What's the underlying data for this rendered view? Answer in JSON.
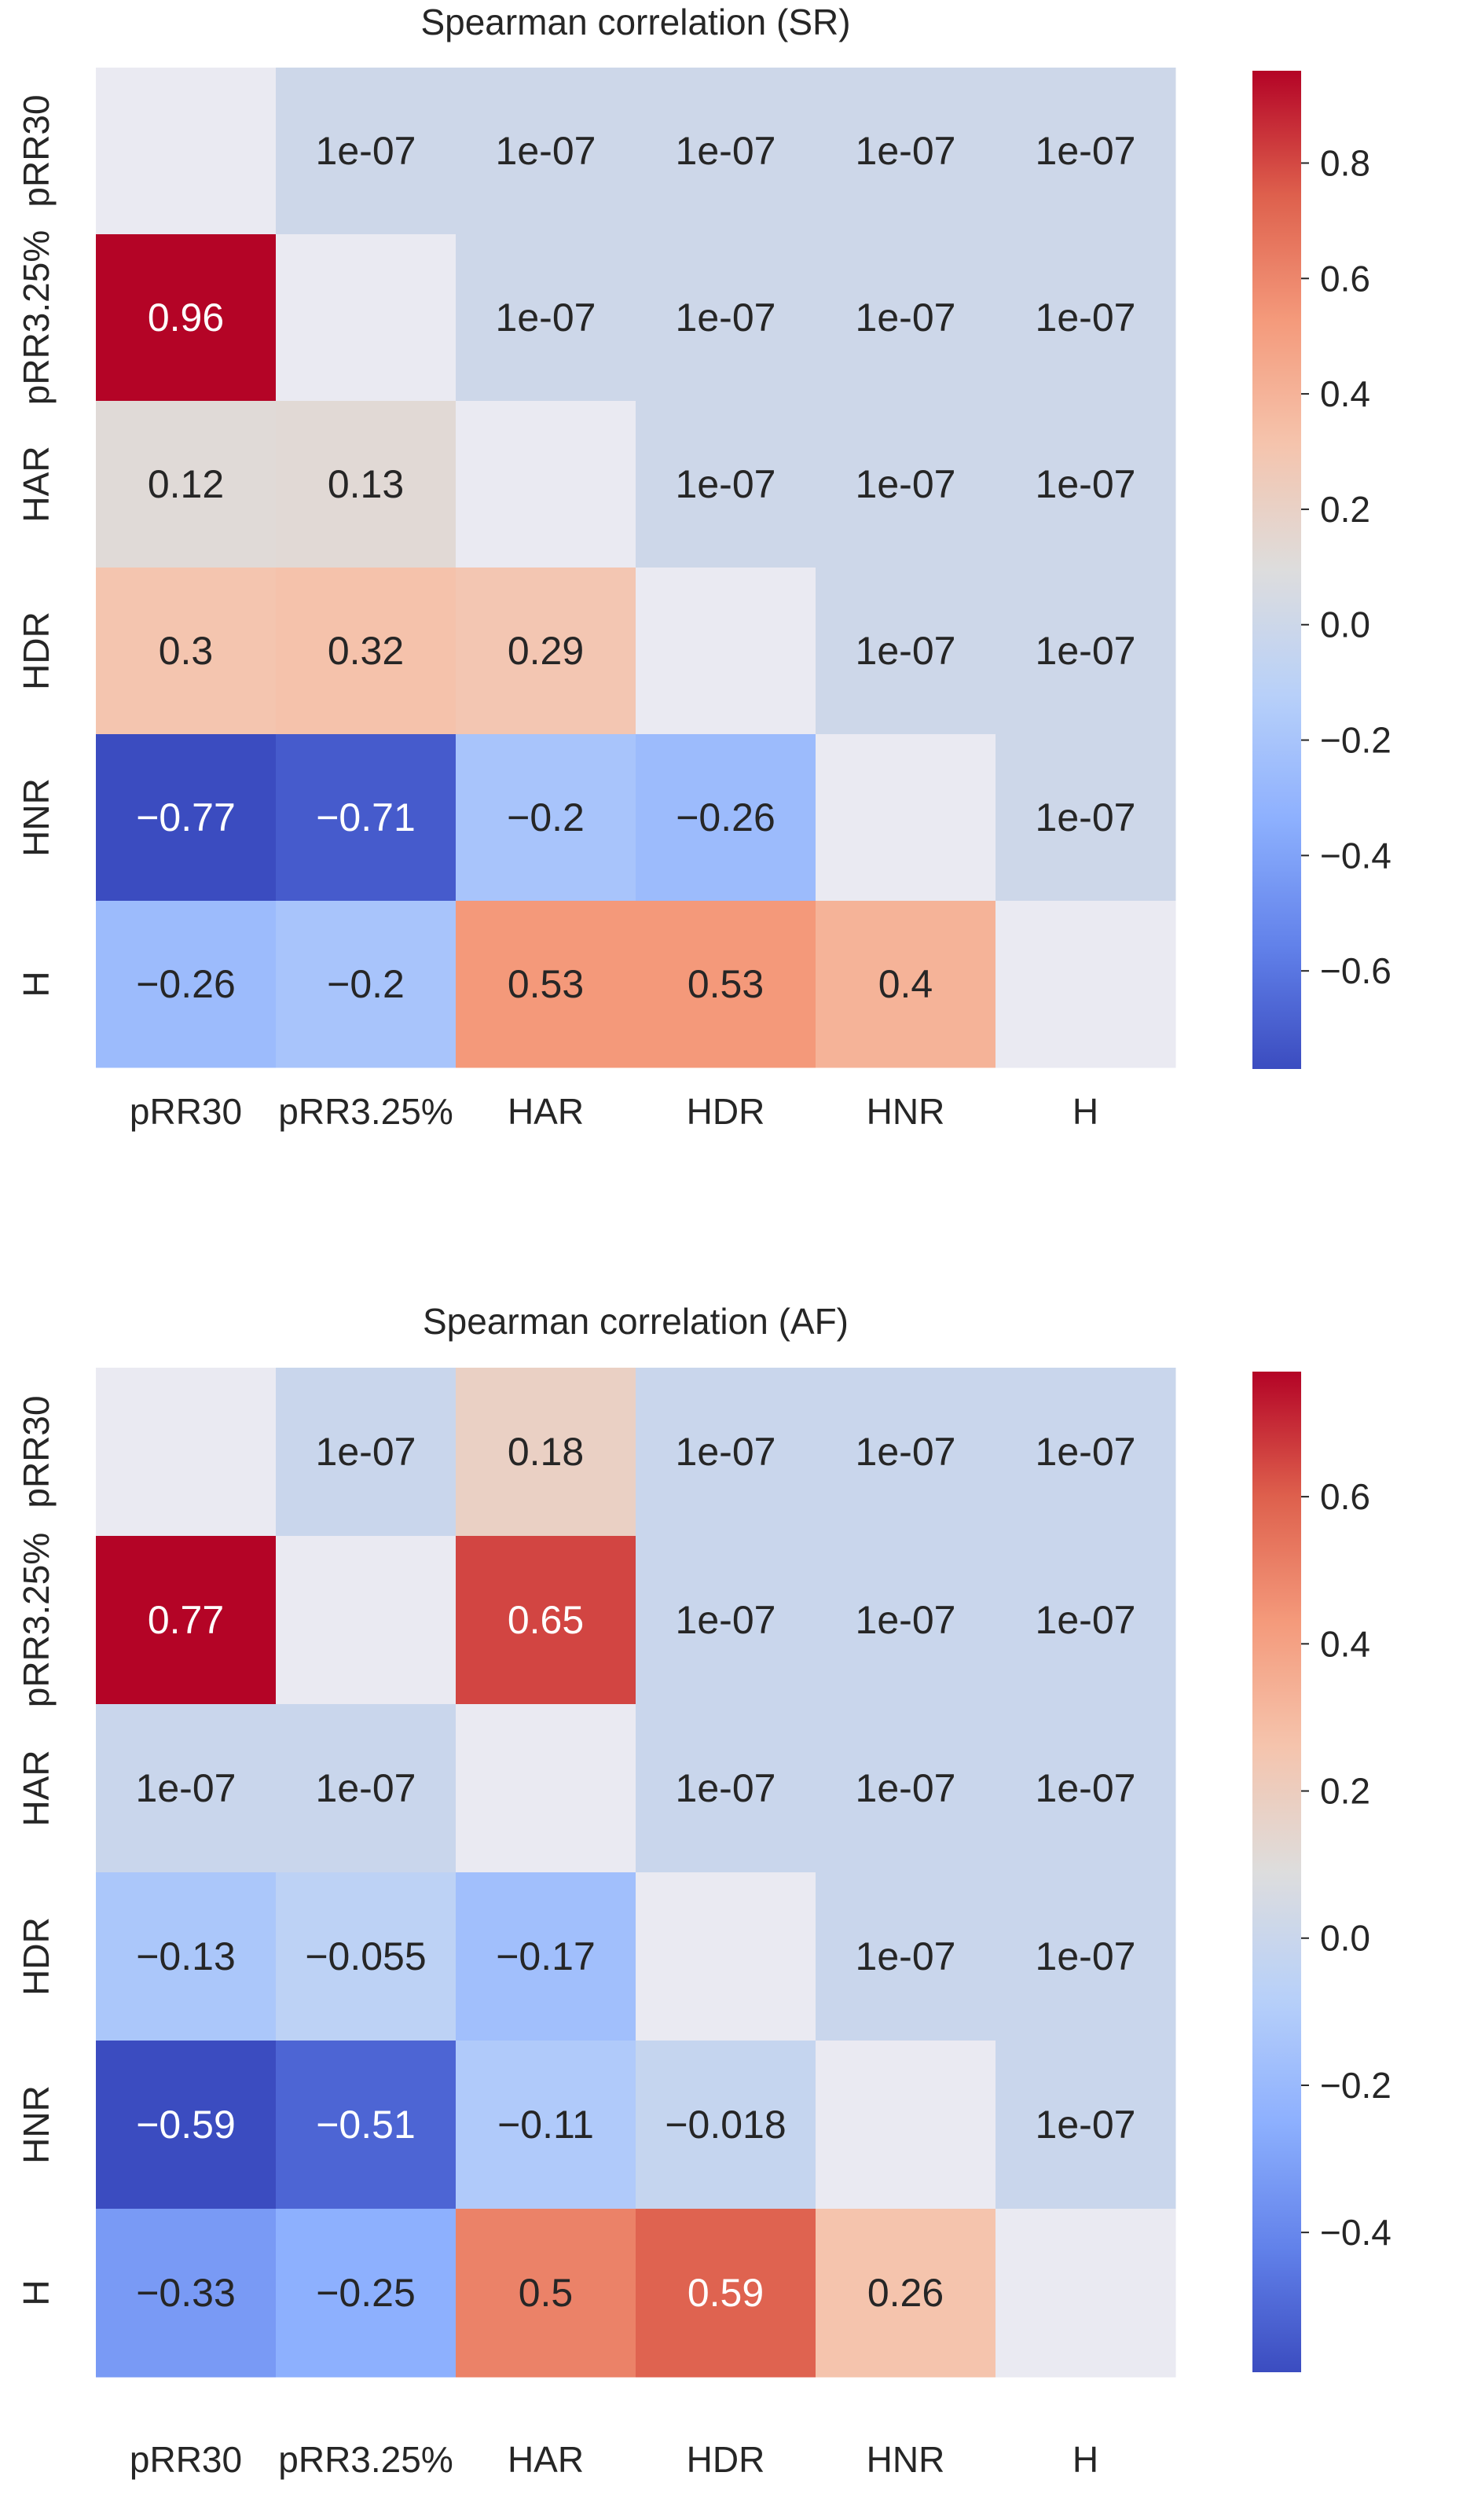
{
  "chart_data": [
    {
      "type": "heatmap",
      "title": "Spearman correlation (SR)",
      "row_labels": [
        "pRR30",
        "pRR3.25%",
        "HAR",
        "HDR",
        "HNR",
        "H"
      ],
      "col_labels": [
        "pRR30",
        "pRR3.25%",
        "HAR",
        "HDR",
        "HNR",
        "H"
      ],
      "values": [
        [
          null,
          1e-07,
          1e-07,
          1e-07,
          1e-07,
          1e-07
        ],
        [
          0.96,
          null,
          1e-07,
          1e-07,
          1e-07,
          1e-07
        ],
        [
          0.12,
          0.13,
          null,
          1e-07,
          1e-07,
          1e-07
        ],
        [
          0.3,
          0.32,
          0.29,
          null,
          1e-07,
          1e-07
        ],
        [
          -0.77,
          -0.71,
          -0.2,
          -0.26,
          null,
          1e-07
        ],
        [
          -0.26,
          -0.2,
          0.53,
          0.53,
          0.4,
          null
        ]
      ],
      "annotations": [
        [
          "",
          "1e-07",
          "1e-07",
          "1e-07",
          "1e-07",
          "1e-07"
        ],
        [
          "0.96",
          "",
          "1e-07",
          "1e-07",
          "1e-07",
          "1e-07"
        ],
        [
          "0.12",
          "0.13",
          "",
          "1e-07",
          "1e-07",
          "1e-07"
        ],
        [
          "0.3",
          "0.32",
          "0.29",
          "",
          "1e-07",
          "1e-07"
        ],
        [
          "−0.77",
          "−0.71",
          "−0.2",
          "−0.26",
          "",
          "1e-07"
        ],
        [
          "−0.26",
          "−0.2",
          "0.53",
          "0.53",
          "0.4",
          ""
        ]
      ],
      "colormap": "coolwarm",
      "vmin": -0.77,
      "vmax": 0.96,
      "colorbar_ticks": [
        0.8,
        0.6,
        0.4,
        0.2,
        0.0,
        -0.2,
        -0.4,
        -0.6
      ],
      "colorbar_tick_labels": [
        "0.8",
        "0.6",
        "0.4",
        "0.2",
        "0.0",
        "−0.2",
        "−0.4",
        "−0.6"
      ]
    },
    {
      "type": "heatmap",
      "title": "Spearman correlation (AF)",
      "row_labels": [
        "pRR30",
        "pRR3.25%",
        "HAR",
        "HDR",
        "HNR",
        "H"
      ],
      "col_labels": [
        "pRR30",
        "pRR3.25%",
        "HAR",
        "HDR",
        "HNR",
        "H"
      ],
      "values": [
        [
          null,
          1e-07,
          0.18,
          1e-07,
          1e-07,
          1e-07
        ],
        [
          0.77,
          null,
          0.65,
          1e-07,
          1e-07,
          1e-07
        ],
        [
          1e-07,
          1e-07,
          null,
          1e-07,
          1e-07,
          1e-07
        ],
        [
          -0.13,
          -0.055,
          -0.17,
          null,
          1e-07,
          1e-07
        ],
        [
          -0.59,
          -0.51,
          -0.11,
          -0.018,
          null,
          1e-07
        ],
        [
          -0.33,
          -0.25,
          0.5,
          0.59,
          0.26,
          null
        ]
      ],
      "annotations": [
        [
          "",
          "1e-07",
          "0.18",
          "1e-07",
          "1e-07",
          "1e-07"
        ],
        [
          "0.77",
          "",
          "0.65",
          "1e-07",
          "1e-07",
          "1e-07"
        ],
        [
          "1e-07",
          "1e-07",
          "",
          "1e-07",
          "1e-07",
          "1e-07"
        ],
        [
          "−0.13",
          "−0.055",
          "−0.17",
          "",
          "1e-07",
          "1e-07"
        ],
        [
          "−0.59",
          "−0.51",
          "−0.11",
          "−0.018",
          "",
          "1e-07"
        ],
        [
          "−0.33",
          "−0.25",
          "0.5",
          "0.59",
          "0.26",
          ""
        ]
      ],
      "colormap": "coolwarm",
      "vmin": -0.59,
      "vmax": 0.77,
      "colorbar_ticks": [
        0.6,
        0.4,
        0.2,
        0.0,
        -0.2,
        -0.4
      ],
      "colorbar_tick_labels": [
        "0.6",
        "0.4",
        "0.2",
        "0.0",
        "−0.2",
        "−0.4"
      ]
    }
  ]
}
